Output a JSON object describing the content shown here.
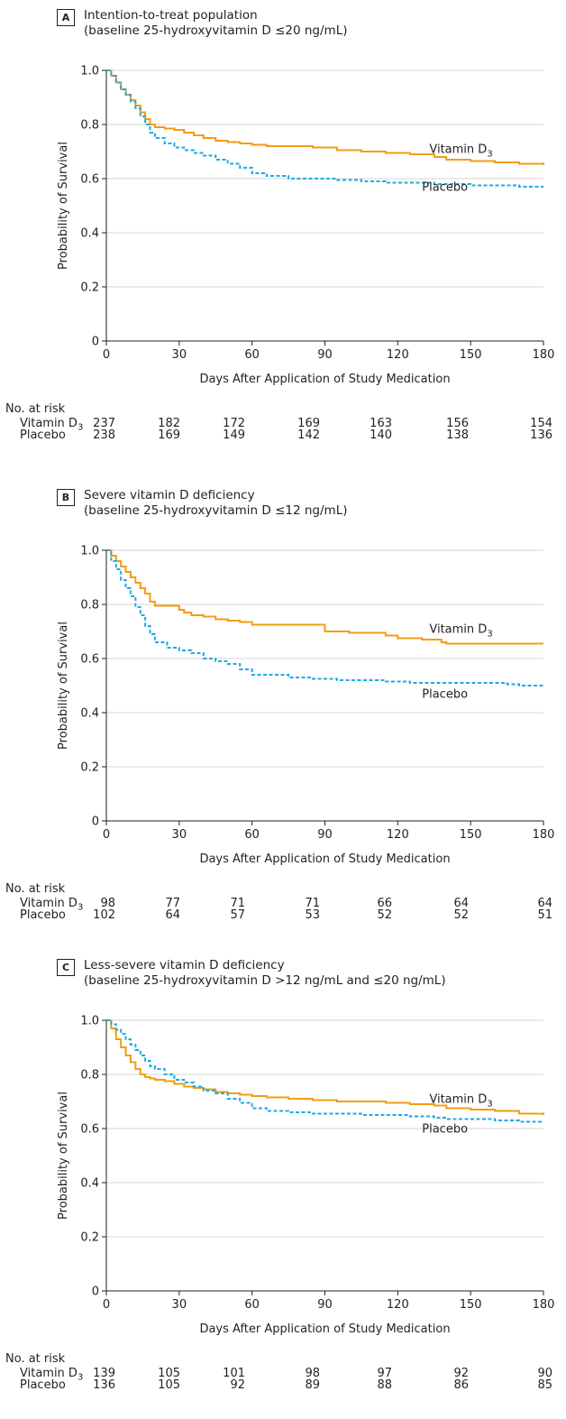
{
  "colors": {
    "vitamin": "#f39c12",
    "placebo": "#1fa9e1",
    "axis": "#231f20",
    "grid": "#c8c8c8"
  },
  "risk_header": "No. at risk",
  "chart_data": [
    {
      "type": "line",
      "panel_letter": "A",
      "title": "Intention-to-treat population",
      "subtitle": "(baseline 25-hydroxyvitamin D ≤20 ng/mL)",
      "xlabel": "Days After Application of Study Medication",
      "ylabel": "Probability of Survival",
      "xlim": [
        0,
        180
      ],
      "ylim": [
        0,
        1.0
      ],
      "x_ticks": [
        0,
        30,
        60,
        90,
        120,
        150,
        180
      ],
      "y_ticks": [
        "0",
        "0.2",
        "0.4",
        "0.6",
        "0.8",
        "1.0"
      ],
      "grid": true,
      "series": [
        {
          "name": "Vitamin D3",
          "name_base": "Vitamin D",
          "name_sub": "3",
          "style": "solid",
          "x": [
            0,
            2,
            4,
            6,
            8,
            10,
            12,
            14,
            16,
            18,
            20,
            24,
            28,
            32,
            36,
            40,
            45,
            50,
            55,
            60,
            66,
            75,
            85,
            95,
            105,
            115,
            125,
            135,
            140,
            150,
            160,
            170,
            175,
            180
          ],
          "y": [
            1.0,
            0.98,
            0.955,
            0.93,
            0.91,
            0.89,
            0.87,
            0.845,
            0.82,
            0.8,
            0.79,
            0.785,
            0.78,
            0.77,
            0.76,
            0.75,
            0.74,
            0.735,
            0.73,
            0.725,
            0.72,
            0.72,
            0.715,
            0.705,
            0.7,
            0.695,
            0.69,
            0.68,
            0.67,
            0.665,
            0.66,
            0.655,
            0.655,
            0.65
          ]
        },
        {
          "name": "Placebo",
          "style": "dashed",
          "x": [
            0,
            2,
            4,
            6,
            8,
            10,
            12,
            14,
            16,
            18,
            20,
            24,
            28,
            32,
            36,
            40,
            45,
            50,
            55,
            60,
            66,
            75,
            85,
            95,
            105,
            115,
            125,
            135,
            140,
            150,
            160,
            170,
            180
          ],
          "y": [
            1.0,
            0.98,
            0.955,
            0.93,
            0.91,
            0.885,
            0.86,
            0.83,
            0.8,
            0.77,
            0.75,
            0.73,
            0.715,
            0.705,
            0.695,
            0.685,
            0.67,
            0.655,
            0.64,
            0.62,
            0.61,
            0.6,
            0.6,
            0.595,
            0.59,
            0.585,
            0.585,
            0.58,
            0.58,
            0.575,
            0.575,
            0.57,
            0.57
          ]
        }
      ],
      "label_positions": {
        "vitamin": [
          133,
          0.695
        ],
        "placebo": [
          130,
          0.555
        ]
      },
      "at_risk": [
        {
          "label_base": "Vitamin D",
          "label_sub": "3",
          "values": [
            237,
            182,
            172,
            169,
            163,
            156,
            154
          ]
        },
        {
          "label_base": "Placebo",
          "label_sub": "",
          "values": [
            238,
            169,
            149,
            142,
            140,
            138,
            136
          ]
        }
      ]
    },
    {
      "type": "line",
      "panel_letter": "B",
      "title": "Severe vitamin D deficiency",
      "subtitle": "(baseline 25-hydroxyvitamin D ≤12 ng/mL)",
      "xlabel": "Days After Application of Study Medication",
      "ylabel": "Probability of Survival",
      "xlim": [
        0,
        180
      ],
      "ylim": [
        0,
        1.0
      ],
      "x_ticks": [
        0,
        30,
        60,
        90,
        120,
        150,
        180
      ],
      "y_ticks": [
        "0",
        "0.2",
        "0.4",
        "0.6",
        "0.8",
        "1.0"
      ],
      "grid": true,
      "series": [
        {
          "name": "Vitamin D3",
          "name_base": "Vitamin D",
          "name_sub": "3",
          "style": "solid",
          "x": [
            0,
            2,
            4,
            6,
            8,
            10,
            12,
            14,
            16,
            18,
            20,
            25,
            30,
            32,
            35,
            40,
            45,
            50,
            55,
            60,
            70,
            80,
            88,
            90,
            100,
            110,
            115,
            120,
            130,
            138,
            140,
            150,
            160,
            170,
            180
          ],
          "y": [
            1.0,
            0.98,
            0.96,
            0.94,
            0.92,
            0.9,
            0.88,
            0.86,
            0.84,
            0.81,
            0.795,
            0.795,
            0.78,
            0.77,
            0.76,
            0.755,
            0.745,
            0.74,
            0.735,
            0.725,
            0.725,
            0.725,
            0.725,
            0.7,
            0.695,
            0.695,
            0.685,
            0.675,
            0.67,
            0.66,
            0.655,
            0.655,
            0.655,
            0.655,
            0.655
          ]
        },
        {
          "name": "Placebo",
          "style": "dashed",
          "x": [
            0,
            2,
            4,
            6,
            8,
            10,
            12,
            14,
            16,
            18,
            20,
            25,
            30,
            35,
            40,
            45,
            50,
            55,
            60,
            65,
            75,
            85,
            95,
            105,
            115,
            125,
            135,
            145,
            155,
            165,
            170,
            180
          ],
          "y": [
            1.0,
            0.96,
            0.93,
            0.89,
            0.86,
            0.83,
            0.79,
            0.76,
            0.72,
            0.69,
            0.66,
            0.64,
            0.63,
            0.62,
            0.6,
            0.59,
            0.58,
            0.56,
            0.54,
            0.54,
            0.53,
            0.525,
            0.52,
            0.52,
            0.515,
            0.51,
            0.51,
            0.51,
            0.51,
            0.505,
            0.5,
            0.5
          ]
        }
      ],
      "label_positions": {
        "vitamin": [
          133,
          0.695
        ],
        "placebo": [
          130,
          0.455
        ]
      },
      "at_risk": [
        {
          "label_base": "Vitamin D",
          "label_sub": "3",
          "values": [
            98,
            77,
            71,
            71,
            66,
            64,
            64
          ]
        },
        {
          "label_base": "Placebo",
          "label_sub": "",
          "values": [
            102,
            64,
            57,
            53,
            52,
            52,
            51
          ]
        }
      ]
    },
    {
      "type": "line",
      "panel_letter": "C",
      "title": "Less-severe vitamin D deficiency",
      "subtitle": "(baseline 25-hydroxyvitamin D >12 ng/mL and ≤20 ng/mL)",
      "xlabel": "Days After Application of Study Medication",
      "ylabel": "Probability of Survival",
      "xlim": [
        0,
        180
      ],
      "ylim": [
        0,
        1.0
      ],
      "x_ticks": [
        0,
        30,
        60,
        90,
        120,
        150,
        180
      ],
      "y_ticks": [
        "0",
        "0.2",
        "0.4",
        "0.6",
        "0.8",
        "1.0"
      ],
      "grid": true,
      "series": [
        {
          "name": "Vitamin D3",
          "name_base": "Vitamin D",
          "name_sub": "3",
          "style": "solid",
          "x": [
            0,
            2,
            4,
            6,
            8,
            10,
            12,
            14,
            16,
            18,
            20,
            24,
            28,
            32,
            36,
            40,
            45,
            50,
            55,
            60,
            66,
            75,
            85,
            95,
            105,
            115,
            125,
            135,
            140,
            150,
            160,
            170,
            180
          ],
          "y": [
            1.0,
            0.97,
            0.93,
            0.9,
            0.87,
            0.845,
            0.82,
            0.8,
            0.79,
            0.785,
            0.78,
            0.775,
            0.765,
            0.755,
            0.75,
            0.745,
            0.735,
            0.73,
            0.725,
            0.72,
            0.715,
            0.71,
            0.705,
            0.7,
            0.7,
            0.695,
            0.69,
            0.685,
            0.675,
            0.67,
            0.665,
            0.655,
            0.65
          ]
        },
        {
          "name": "Placebo",
          "style": "dashed",
          "x": [
            0,
            2,
            4,
            6,
            8,
            10,
            12,
            14,
            16,
            18,
            20,
            24,
            28,
            32,
            36,
            40,
            45,
            50,
            55,
            60,
            66,
            75,
            85,
            95,
            105,
            115,
            125,
            135,
            140,
            150,
            160,
            170,
            180
          ],
          "y": [
            1.0,
            0.985,
            0.965,
            0.95,
            0.93,
            0.91,
            0.89,
            0.87,
            0.85,
            0.83,
            0.82,
            0.8,
            0.78,
            0.77,
            0.755,
            0.74,
            0.73,
            0.71,
            0.695,
            0.675,
            0.665,
            0.66,
            0.655,
            0.655,
            0.65,
            0.65,
            0.645,
            0.64,
            0.635,
            0.635,
            0.63,
            0.625,
            0.625
          ]
        }
      ],
      "label_positions": {
        "vitamin": [
          133,
          0.695
        ],
        "placebo": [
          130,
          0.585
        ]
      },
      "at_risk": [
        {
          "label_base": "Vitamin D",
          "label_sub": "3",
          "values": [
            139,
            105,
            101,
            98,
            97,
            92,
            90
          ]
        },
        {
          "label_base": "Placebo",
          "label_sub": "",
          "values": [
            136,
            105,
            92,
            89,
            88,
            86,
            85
          ]
        }
      ]
    }
  ]
}
